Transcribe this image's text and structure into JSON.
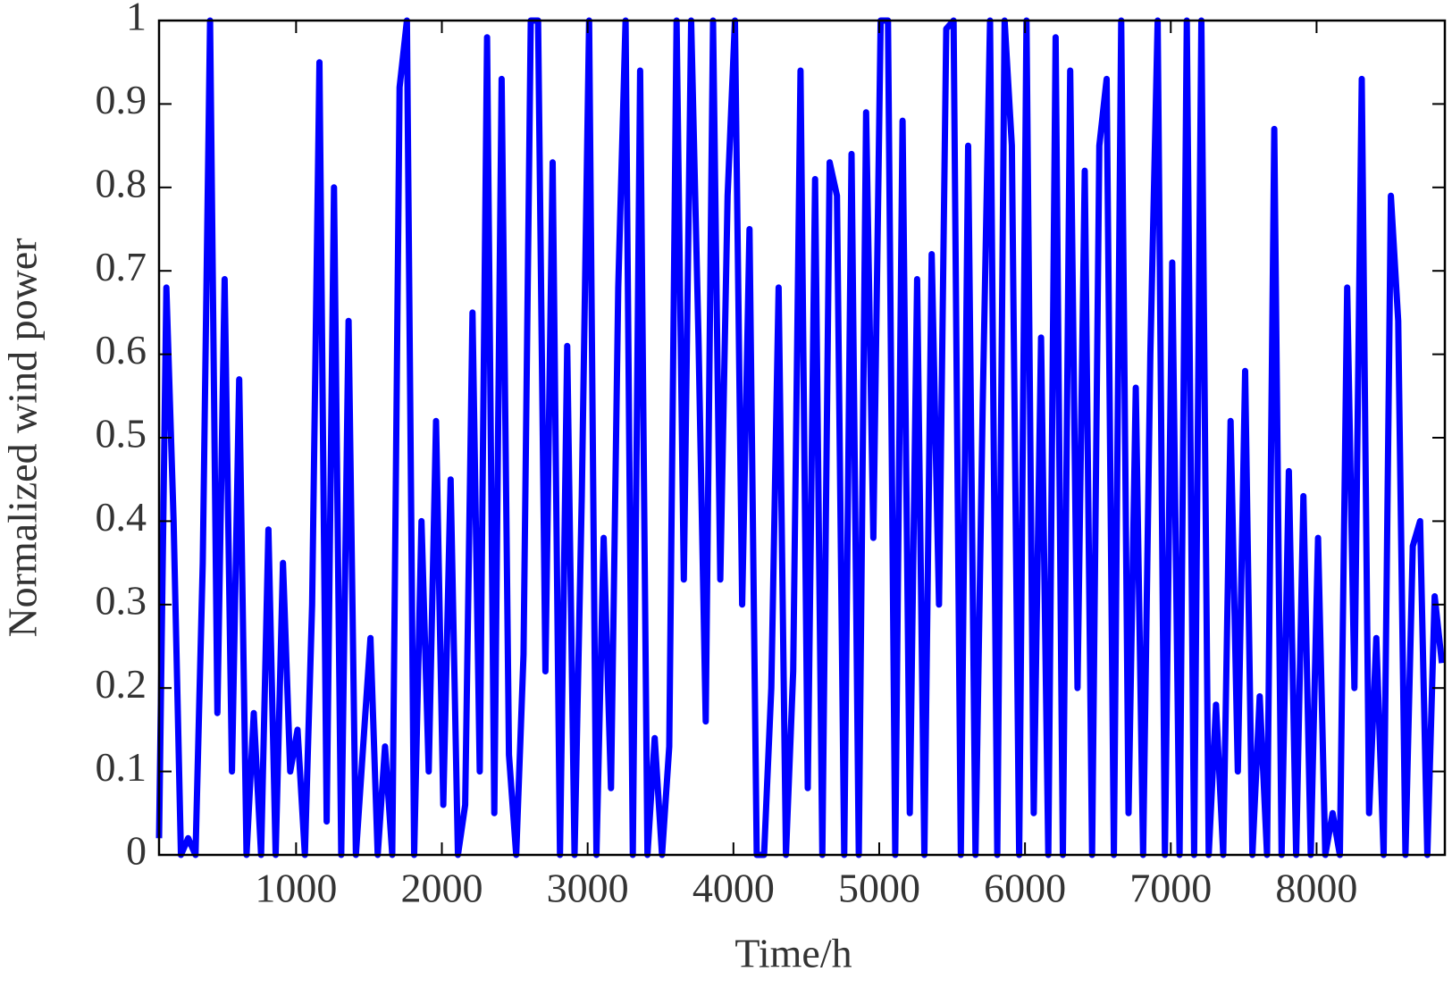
{
  "chart_data": {
    "type": "line",
    "x_label": "Time/h",
    "y_label": "Normalized wind power",
    "x": [
      60,
      110,
      160,
      210,
      260,
      310,
      360,
      410,
      460,
      510,
      560,
      610,
      660,
      710,
      760,
      810,
      860,
      910,
      960,
      1010,
      1060,
      1110,
      1160,
      1210,
      1260,
      1310,
      1360,
      1410,
      1460,
      1510,
      1560,
      1610,
      1660,
      1710,
      1760,
      1810,
      1860,
      1910,
      1960,
      2010,
      2060,
      2110,
      2160,
      2210,
      2260,
      2310,
      2360,
      2410,
      2460,
      2510,
      2560,
      2610,
      2660,
      2710,
      2760,
      2810,
      2860,
      2910,
      2960,
      3010,
      3060,
      3110,
      3160,
      3210,
      3260,
      3310,
      3360,
      3410,
      3460,
      3510,
      3560,
      3610,
      3660,
      3710,
      3760,
      3810,
      3860,
      3910,
      3960,
      4010,
      4060,
      4110,
      4160,
      4210,
      4260,
      4310,
      4360,
      4410,
      4460,
      4510,
      4560,
      4610,
      4660,
      4710,
      4760,
      4810,
      4860,
      4910,
      4960,
      5010,
      5060,
      5110,
      5160,
      5210,
      5260,
      5310,
      5360,
      5410,
      5460,
      5510,
      5560,
      5610,
      5660,
      5710,
      5760,
      5810,
      5860,
      5910,
      5960,
      6010,
      6060,
      6110,
      6160,
      6210,
      6260,
      6310,
      6360,
      6410,
      6460,
      6510,
      6560,
      6610,
      6660,
      6710,
      6760,
      6810,
      6860,
      6910,
      6960,
      7010,
      7060,
      7110,
      7160,
      7210,
      7260,
      7310,
      7360,
      7410,
      7460,
      7510,
      7560,
      7610,
      7660,
      7710,
      7760,
      7810,
      7860,
      7910,
      7960,
      8010,
      8060,
      8110,
      8160,
      8210,
      8260,
      8310,
      8360,
      8410,
      8460,
      8510,
      8560,
      8610,
      8660,
      8710,
      8760,
      8810,
      8860
    ],
    "series": [
      {
        "color": "#0000ff",
        "values": [
          0.02,
          0.68,
          0.4,
          0.0,
          0.02,
          0.0,
          0.35,
          1.0,
          0.17,
          0.69,
          0.1,
          0.57,
          0.0,
          0.17,
          0.0,
          0.39,
          0.0,
          0.35,
          0.1,
          0.15,
          0.0,
          0.3,
          0.95,
          0.04,
          0.8,
          0.0,
          0.64,
          0.0,
          0.13,
          0.26,
          0.0,
          0.13,
          0.0,
          0.92,
          1.0,
          0.0,
          0.4,
          0.1,
          0.52,
          0.06,
          0.45,
          0.0,
          0.06,
          0.65,
          0.1,
          0.98,
          0.05,
          0.93,
          0.12,
          0.0,
          0.24,
          1.0,
          1.0,
          0.22,
          0.83,
          0.0,
          0.61,
          0.0,
          0.43,
          1.0,
          0.0,
          0.38,
          0.08,
          0.68,
          1.0,
          0.0,
          0.94,
          0.0,
          0.14,
          0.0,
          0.13,
          1.0,
          0.33,
          1.0,
          0.62,
          0.16,
          1.0,
          0.33,
          0.79,
          1.0,
          0.3,
          0.75,
          0.0,
          0.0,
          0.2,
          0.68,
          0.0,
          0.22,
          0.94,
          0.08,
          0.81,
          0.0,
          0.83,
          0.79,
          0.0,
          0.84,
          0.0,
          0.89,
          0.38,
          1.0,
          1.0,
          0.0,
          0.88,
          0.05,
          0.69,
          0.0,
          0.72,
          0.3,
          0.99,
          1.0,
          0.0,
          0.85,
          0.0,
          0.54,
          1.0,
          0.0,
          1.0,
          0.85,
          0.0,
          1.0,
          0.05,
          0.62,
          0.0,
          0.98,
          0.0,
          0.94,
          0.2,
          0.82,
          0.0,
          0.85,
          0.93,
          0.0,
          1.0,
          0.05,
          0.56,
          0.0,
          0.6,
          1.0,
          0.0,
          0.71,
          0.0,
          1.0,
          0.0,
          1.0,
          0.0,
          0.18,
          0.0,
          0.52,
          0.1,
          0.58,
          0.0,
          0.19,
          0.0,
          0.87,
          0.0,
          0.46,
          0.0,
          0.43,
          0.0,
          0.38,
          0.0,
          0.05,
          0.0,
          0.68,
          0.2,
          0.93,
          0.05,
          0.26,
          0.0,
          0.79,
          0.64,
          0.0,
          0.37,
          0.4,
          0.0,
          0.31,
          0.23
        ]
      }
    ],
    "xlim": [
      60,
      8880
    ],
    "ylim": [
      0,
      1
    ],
    "xticks": [
      1000,
      2000,
      3000,
      4000,
      5000,
      6000,
      7000,
      8000
    ],
    "yticks": [
      0,
      0.1,
      0.2,
      0.3,
      0.4,
      0.5,
      0.6,
      0.7,
      0.8,
      0.9,
      1
    ]
  }
}
